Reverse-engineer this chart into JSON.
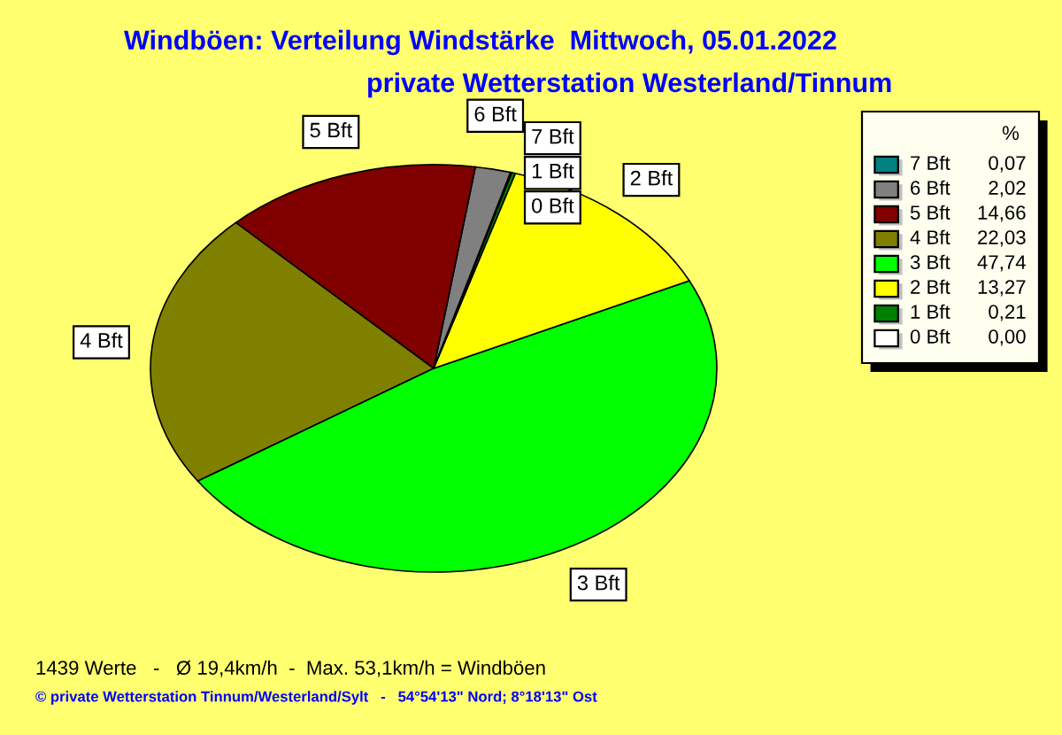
{
  "chart_data": {
    "type": "pie",
    "title": "Windböen: Verteilung Windstärke  Mittwoch, 05.01.2022",
    "subtitle": "private Wetterstation Westerland/Tinnum",
    "legend_title": "%",
    "categories": [
      "7 Bft",
      "6 Bft",
      "5 Bft",
      "4 Bft",
      "3 Bft",
      "2 Bft",
      "1 Bft",
      "0 Bft"
    ],
    "values": [
      0.07,
      2.02,
      14.66,
      22.03,
      47.74,
      13.27,
      0.21,
      0.0
    ],
    "colors": [
      "#008080",
      "#808080",
      "#800000",
      "#808000",
      "#00ff00",
      "#ffff00",
      "#008000",
      "#ffffff"
    ],
    "value_labels": [
      "0,07",
      "2,02",
      "14,66",
      "22,03",
      "47,74",
      "13,27",
      "0,21",
      "0,00"
    ],
    "legend": "top right",
    "annotations": [
      "1439 Werte   -   Ø 19,4km/h  -  Max. 53,1km/h = Windböen",
      "© private Wetterstation Tinnum/Westerland/Sylt   -   54°54'13\" Nord; 8°18'13\" Ost"
    ]
  }
}
